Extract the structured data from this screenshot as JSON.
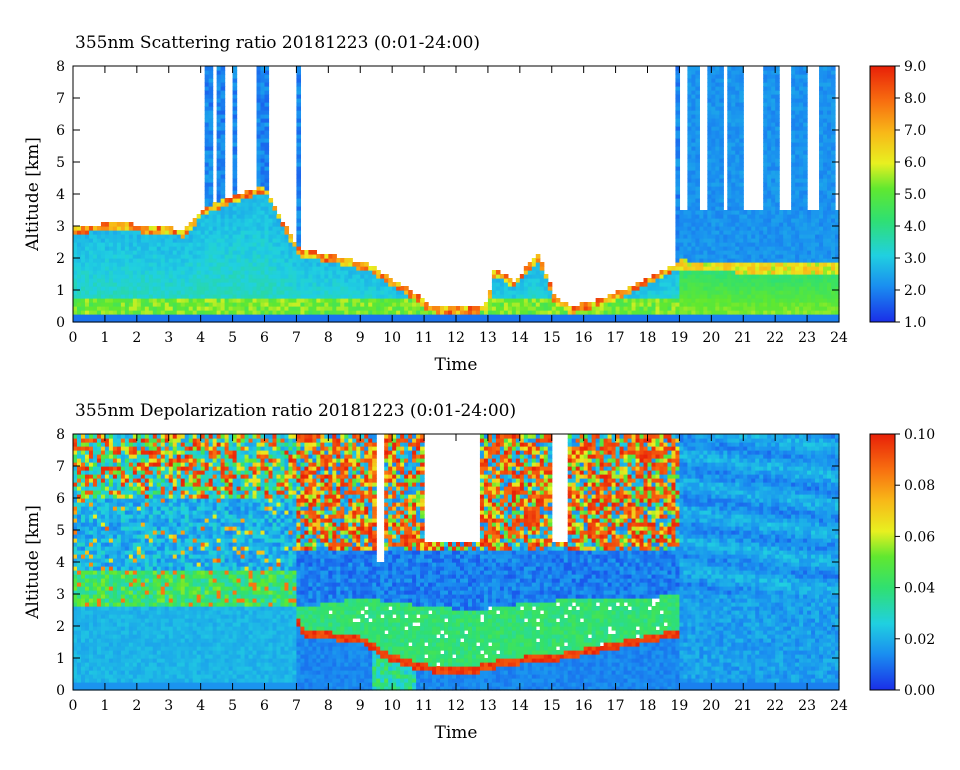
{
  "chart_data": [
    {
      "type": "heatmap",
      "title": "355nm Scattering ratio  20181223 (0:01-24:00)",
      "xlabel": "Time",
      "ylabel": "Altitude [km]",
      "xlim": [
        0,
        24
      ],
      "ylim": [
        0,
        8
      ],
      "x_ticks": [
        0,
        1,
        2,
        3,
        4,
        5,
        6,
        7,
        8,
        9,
        10,
        11,
        12,
        13,
        14,
        15,
        16,
        17,
        18,
        19,
        20,
        21,
        22,
        23,
        24
      ],
      "y_ticks": [
        0,
        1,
        2,
        3,
        4,
        5,
        6,
        7,
        8
      ],
      "colorbar": {
        "range": [
          1.0,
          9.0
        ],
        "tick_labels": [
          "1.0",
          "2.0",
          "3.0",
          "4.0",
          "5.0",
          "6.0",
          "7.0",
          "8.0",
          "9.0"
        ]
      },
      "colors": {
        "low": "#1440e0",
        "mid_low": "#18c8e8",
        "mid": "#30d060",
        "mid_high": "#f0e020",
        "high": "#f03010",
        "no_data": "#ffffff"
      }
    },
    {
      "type": "heatmap",
      "title": "355nm Depolarization ratio  20181223 (0:01-24:00)",
      "xlabel": "Time",
      "ylabel": "Altitude [km]",
      "xlim": [
        0,
        24
      ],
      "ylim": [
        0,
        8
      ],
      "x_ticks": [
        0,
        1,
        2,
        3,
        4,
        5,
        6,
        7,
        8,
        9,
        10,
        11,
        12,
        13,
        14,
        15,
        16,
        17,
        18,
        19,
        20,
        21,
        22,
        23,
        24
      ],
      "y_ticks": [
        0,
        1,
        2,
        3,
        4,
        5,
        6,
        7,
        8
      ],
      "colorbar": {
        "range": [
          0.0,
          0.1
        ],
        "tick_labels": [
          "0.00",
          "0.02",
          "0.04",
          "0.06",
          "0.08",
          "0.10"
        ]
      },
      "colors": {
        "low": "#1440e0",
        "mid_low": "#18c8e8",
        "mid": "#30d060",
        "mid_high": "#f0e020",
        "high": "#f03010",
        "no_data": "#ffffff"
      }
    }
  ]
}
